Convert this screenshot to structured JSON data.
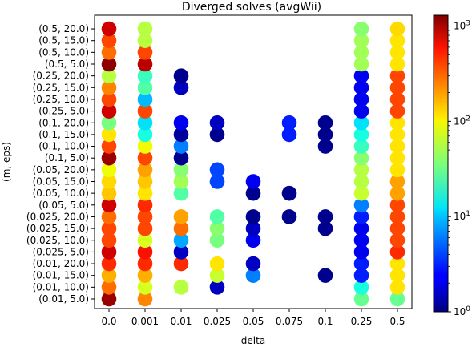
{
  "chart_data": {
    "type": "scatter",
    "title": "Diverged solves (avgWii)",
    "xlabel": "delta",
    "ylabel": "(m, eps)",
    "x_categories": [
      "0.0",
      "0.001",
      "0.01",
      "0.025",
      "0.05",
      "0.075",
      "0.1",
      "0.25",
      "0.5"
    ],
    "y_categories": [
      "(0.01, 5.0)",
      "(0.01, 10.0)",
      "(0.01, 15.0)",
      "(0.01, 20.0)",
      "(0.025, 5.0)",
      "(0.025, 10.0)",
      "(0.025, 15.0)",
      "(0.025, 20.0)",
      "(0.05, 5.0)",
      "(0.05, 10.0)",
      "(0.05, 15.0)",
      "(0.05, 20.0)",
      "(0.1, 5.0)",
      "(0.1, 10.0)",
      "(0.1, 15.0)",
      "(0.1, 20.0)",
      "(0.25, 5.0)",
      "(0.25, 10.0)",
      "(0.25, 15.0)",
      "(0.25, 20.0)",
      "(0.5, 5.0)",
      "(0.5, 10.0)",
      "(0.5, 15.0)",
      "(0.5, 20.0)"
    ],
    "colorbar": {
      "scale": "log",
      "range": [
        1,
        1300
      ],
      "colormap": "jet",
      "tick_values": [
        1,
        10,
        100,
        1000
      ],
      "tick_labels": [
        "10^0",
        "10^1",
        "10^2",
        "10^3"
      ]
    },
    "points": [
      {
        "x": "0.0",
        "y": "(0.01, 5.0)",
        "value": 1100
      },
      {
        "x": "0.0",
        "y": "(0.01, 10.0)",
        "value": 300
      },
      {
        "x": "0.0",
        "y": "(0.01, 15.0)",
        "value": 180
      },
      {
        "x": "0.0",
        "y": "(0.01, 20.0)",
        "value": 500
      },
      {
        "x": "0.0",
        "y": "(0.025, 5.0)",
        "value": 800
      },
      {
        "x": "0.0",
        "y": "(0.025, 10.0)",
        "value": 400
      },
      {
        "x": "0.0",
        "y": "(0.025, 15.0)",
        "value": 400
      },
      {
        "x": "0.0",
        "y": "(0.025, 20.0)",
        "value": 300
      },
      {
        "x": "0.0",
        "y": "(0.05, 5.0)",
        "value": 800
      },
      {
        "x": "0.0",
        "y": "(0.05, 10.0)",
        "value": 150
      },
      {
        "x": "0.0",
        "y": "(0.05, 15.0)",
        "value": 130
      },
      {
        "x": "0.0",
        "y": "(0.05, 20.0)",
        "value": 100
      },
      {
        "x": "0.0",
        "y": "(0.1, 5.0)",
        "value": 1100
      },
      {
        "x": "0.0",
        "y": "(0.1, 10.0)",
        "value": 400
      },
      {
        "x": "0.0",
        "y": "(0.1, 15.0)",
        "value": 120
      },
      {
        "x": "0.0",
        "y": "(0.1, 20.0)",
        "value": 35
      },
      {
        "x": "0.0",
        "y": "(0.25, 5.0)",
        "value": 800
      },
      {
        "x": "0.0",
        "y": "(0.25, 10.0)",
        "value": 400
      },
      {
        "x": "0.0",
        "y": "(0.25, 15.0)",
        "value": 250
      },
      {
        "x": "0.0",
        "y": "(0.25, 20.0)",
        "value": 60
      },
      {
        "x": "0.0",
        "y": "(0.5, 5.0)",
        "value": 1200
      },
      {
        "x": "0.0",
        "y": "(0.5, 10.0)",
        "value": 300
      },
      {
        "x": "0.0",
        "y": "(0.5, 15.0)",
        "value": 400
      },
      {
        "x": "0.0",
        "y": "(0.5, 20.0)",
        "value": 800
      },
      {
        "x": "0.001",
        "y": "(0.01, 5.0)",
        "value": 250
      },
      {
        "x": "0.001",
        "y": "(0.01, 10.0)",
        "value": 80
      },
      {
        "x": "0.001",
        "y": "(0.01, 15.0)",
        "value": 180
      },
      {
        "x": "0.001",
        "y": "(0.01, 20.0)",
        "value": 500
      },
      {
        "x": "0.001",
        "y": "(0.025, 5.0)",
        "value": 600
      },
      {
        "x": "0.001",
        "y": "(0.025, 10.0)",
        "value": 80
      },
      {
        "x": "0.001",
        "y": "(0.025, 15.0)",
        "value": 400
      },
      {
        "x": "0.001",
        "y": "(0.025, 20.0)",
        "value": 400
      },
      {
        "x": "0.001",
        "y": "(0.05, 5.0)",
        "value": 500
      },
      {
        "x": "0.001",
        "y": "(0.05, 10.0)",
        "value": 120
      },
      {
        "x": "0.001",
        "y": "(0.05, 15.0)",
        "value": 150
      },
      {
        "x": "0.001",
        "y": "(0.05, 20.0)",
        "value": 200
      },
      {
        "x": "0.001",
        "y": "(0.1, 5.0)",
        "value": 400
      },
      {
        "x": "0.001",
        "y": "(0.1, 10.0)",
        "value": 100
      },
      {
        "x": "0.001",
        "y": "(0.1, 15.0)",
        "value": 15
      },
      {
        "x": "0.001",
        "y": "(0.1, 20.0)",
        "value": 12
      },
      {
        "x": "0.001",
        "y": "(0.25, 5.0)",
        "value": 400
      },
      {
        "x": "0.001",
        "y": "(0.25, 10.0)",
        "value": 9
      },
      {
        "x": "0.001",
        "y": "(0.25, 15.0)",
        "value": 25
      },
      {
        "x": "0.001",
        "y": "(0.25, 20.0)",
        "value": 20
      },
      {
        "x": "0.001",
        "y": "(0.5, 5.0)",
        "value": 900
      },
      {
        "x": "0.001",
        "y": "(0.5, 10.0)",
        "value": 400
      },
      {
        "x": "0.001",
        "y": "(0.5, 15.0)",
        "value": 60
      },
      {
        "x": "0.001",
        "y": "(0.5, 20.0)",
        "value": 60
      },
      {
        "x": "0.01",
        "y": "(0.01, 10.0)",
        "value": 60
      },
      {
        "x": "0.01",
        "y": "(0.01, 20.0)",
        "value": 500
      },
      {
        "x": "0.01",
        "y": "(0.025, 5.0)",
        "value": 1.5
      },
      {
        "x": "0.01",
        "y": "(0.025, 10.0)",
        "value": 8
      },
      {
        "x": "0.01",
        "y": "(0.025, 15.0)",
        "value": 300
      },
      {
        "x": "0.01",
        "y": "(0.025, 20.0)",
        "value": 200
      },
      {
        "x": "0.01",
        "y": "(0.05, 10.0)",
        "value": 25
      },
      {
        "x": "0.01",
        "y": "(0.05, 15.0)",
        "value": 50
      },
      {
        "x": "0.01",
        "y": "(0.05, 20.0)",
        "value": 40
      },
      {
        "x": "0.01",
        "y": "(0.1, 5.0)",
        "value": 1.1
      },
      {
        "x": "0.01",
        "y": "(0.1, 10.0)",
        "value": 6
      },
      {
        "x": "0.01",
        "y": "(0.1, 15.0)",
        "value": 1.2
      },
      {
        "x": "0.01",
        "y": "(0.1, 20.0)",
        "value": 2
      },
      {
        "x": "0.01",
        "y": "(0.25, 15.0)",
        "value": 1.5
      },
      {
        "x": "0.01",
        "y": "(0.25, 20.0)",
        "value": 1.1
      },
      {
        "x": "0.025",
        "y": "(0.01, 10.0)",
        "value": 1.5
      },
      {
        "x": "0.025",
        "y": "(0.01, 15.0)",
        "value": 70
      },
      {
        "x": "0.025",
        "y": "(0.01, 20.0)",
        "value": 120
      },
      {
        "x": "0.025",
        "y": "(0.025, 10.0)",
        "value": 35
      },
      {
        "x": "0.025",
        "y": "(0.025, 15.0)",
        "value": 40
      },
      {
        "x": "0.025",
        "y": "(0.025, 20.0)",
        "value": 25
      },
      {
        "x": "0.025",
        "y": "(0.05, 15.0)",
        "value": 4
      },
      {
        "x": "0.025",
        "y": "(0.05, 20.0)",
        "value": 4
      },
      {
        "x": "0.025",
        "y": "(0.1, 15.0)",
        "value": 1.1
      },
      {
        "x": "0.025",
        "y": "(0.1, 20.0)",
        "value": 1.5
      },
      {
        "x": "0.05",
        "y": "(0.01, 15.0)",
        "value": 6
      },
      {
        "x": "0.05",
        "y": "(0.01, 20.0)",
        "value": 1.5
      },
      {
        "x": "0.05",
        "y": "(0.025, 10.0)",
        "value": 2
      },
      {
        "x": "0.05",
        "y": "(0.025, 15.0)",
        "value": 1.5
      },
      {
        "x": "0.05",
        "y": "(0.025, 20.0)",
        "value": 1.1
      },
      {
        "x": "0.05",
        "y": "(0.05, 10.0)",
        "value": 1.1
      },
      {
        "x": "0.05",
        "y": "(0.05, 15.0)",
        "value": 2
      },
      {
        "x": "0.075",
        "y": "(0.025, 20.0)",
        "value": 1.1
      },
      {
        "x": "0.075",
        "y": "(0.05, 10.0)",
        "value": 1.1
      },
      {
        "x": "0.075",
        "y": "(0.1, 15.0)",
        "value": 3
      },
      {
        "x": "0.075",
        "y": "(0.1, 20.0)",
        "value": 3
      },
      {
        "x": "0.1",
        "y": "(0.01, 15.0)",
        "value": 1.1
      },
      {
        "x": "0.1",
        "y": "(0.025, 15.0)",
        "value": 1.1
      },
      {
        "x": "0.1",
        "y": "(0.025, 20.0)",
        "value": 1.1
      },
      {
        "x": "0.1",
        "y": "(0.1, 10.0)",
        "value": 1.1
      },
      {
        "x": "0.1",
        "y": "(0.1, 15.0)",
        "value": 1.1
      },
      {
        "x": "0.1",
        "y": "(0.1, 20.0)",
        "value": 1.1
      },
      {
        "x": "0.25",
        "y": "(0.01, 5.0)",
        "value": 30
      },
      {
        "x": "0.25",
        "y": "(0.01, 10.0)",
        "value": 15
      },
      {
        "x": "0.25",
        "y": "(0.01, 15.0)",
        "value": 3
      },
      {
        "x": "0.25",
        "y": "(0.01, 20.0)",
        "value": 3
      },
      {
        "x": "0.25",
        "y": "(0.025, 5.0)",
        "value": 2
      },
      {
        "x": "0.25",
        "y": "(0.025, 10.0)",
        "value": 2
      },
      {
        "x": "0.25",
        "y": "(0.025, 15.0)",
        "value": 2
      },
      {
        "x": "0.25",
        "y": "(0.025, 20.0)",
        "value": 3
      },
      {
        "x": "0.25",
        "y": "(0.05, 5.0)",
        "value": 6
      },
      {
        "x": "0.25",
        "y": "(0.05, 10.0)",
        "value": 70
      },
      {
        "x": "0.25",
        "y": "(0.05, 15.0)",
        "value": 60
      },
      {
        "x": "0.25",
        "y": "(0.05, 20.0)",
        "value": 60
      },
      {
        "x": "0.25",
        "y": "(0.1, 5.0)",
        "value": 40
      },
      {
        "x": "0.25",
        "y": "(0.1, 10.0)",
        "value": 20
      },
      {
        "x": "0.25",
        "y": "(0.1, 15.0)",
        "value": 15
      },
      {
        "x": "0.25",
        "y": "(0.1, 20.0)",
        "value": 12
      },
      {
        "x": "0.25",
        "y": "(0.25, 5.0)",
        "value": 2
      },
      {
        "x": "0.25",
        "y": "(0.25, 10.0)",
        "value": 2
      },
      {
        "x": "0.25",
        "y": "(0.25, 15.0)",
        "value": 2
      },
      {
        "x": "0.25",
        "y": "(0.25, 20.0)",
        "value": 2
      },
      {
        "x": "0.25",
        "y": "(0.5, 5.0)",
        "value": 50
      },
      {
        "x": "0.25",
        "y": "(0.5, 10.0)",
        "value": 50
      },
      {
        "x": "0.25",
        "y": "(0.5, 15.0)",
        "value": 50
      },
      {
        "x": "0.25",
        "y": "(0.5, 20.0)",
        "value": 40
      },
      {
        "x": "0.5",
        "y": "(0.01, 5.0)",
        "value": 30
      },
      {
        "x": "0.5",
        "y": "(0.01, 10.0)",
        "value": 120
      },
      {
        "x": "0.5",
        "y": "(0.01, 15.0)",
        "value": 120
      },
      {
        "x": "0.5",
        "y": "(0.01, 20.0)",
        "value": 120
      },
      {
        "x": "0.5",
        "y": "(0.025, 5.0)",
        "value": 500
      },
      {
        "x": "0.5",
        "y": "(0.025, 10.0)",
        "value": 400
      },
      {
        "x": "0.5",
        "y": "(0.025, 15.0)",
        "value": 400
      },
      {
        "x": "0.5",
        "y": "(0.025, 20.0)",
        "value": 400
      },
      {
        "x": "0.5",
        "y": "(0.05, 5.0)",
        "value": 400
      },
      {
        "x": "0.5",
        "y": "(0.05, 10.0)",
        "value": 200
      },
      {
        "x": "0.5",
        "y": "(0.05, 15.0)",
        "value": 200
      },
      {
        "x": "0.5",
        "y": "(0.05, 20.0)",
        "value": 120
      },
      {
        "x": "0.5",
        "y": "(0.1, 5.0)",
        "value": 120
      },
      {
        "x": "0.5",
        "y": "(0.1, 10.0)",
        "value": 120
      },
      {
        "x": "0.5",
        "y": "(0.1, 15.0)",
        "value": 120
      },
      {
        "x": "0.5",
        "y": "(0.1, 20.0)",
        "value": 120
      },
      {
        "x": "0.5",
        "y": "(0.25, 5.0)",
        "value": 400
      },
      {
        "x": "0.5",
        "y": "(0.25, 10.0)",
        "value": 400
      },
      {
        "x": "0.5",
        "y": "(0.25, 15.0)",
        "value": 400
      },
      {
        "x": "0.5",
        "y": "(0.25, 20.0)",
        "value": 400
      },
      {
        "x": "0.5",
        "y": "(0.5, 5.0)",
        "value": 120
      },
      {
        "x": "0.5",
        "y": "(0.5, 10.0)",
        "value": 120
      },
      {
        "x": "0.5",
        "y": "(0.5, 15.0)",
        "value": 120
      },
      {
        "x": "0.5",
        "y": "(0.5, 20.0)",
        "value": 130
      }
    ]
  }
}
